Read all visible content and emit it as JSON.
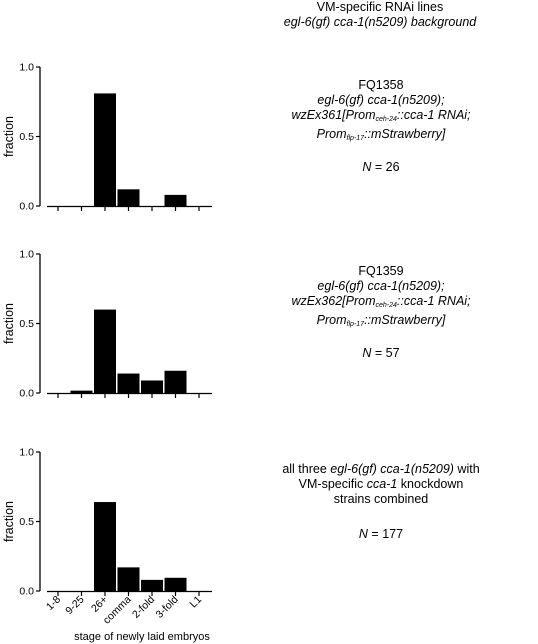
{
  "header": {
    "line1": "VM-specific RNAi lines",
    "line2": "egl-6(gf) cca-1(n5209) background"
  },
  "x_axis_label": "stage of newly laid embryos",
  "panels": [
    {
      "strain": "FQ1358",
      "genotype1": "egl-6(gf) cca-1(n5209);",
      "genotype2_a": "wzEx361[Prom",
      "genotype2_sub": "ceh-24",
      "genotype2_b": "::cca-1 RNAi;",
      "genotype3_a": "Prom",
      "genotype3_sub": "flp-17",
      "genotype3_b": "::mStrawberry]",
      "n_label": "N",
      "n_value": " = 26"
    },
    {
      "strain": "FQ1359",
      "genotype1": "egl-6(gf) cca-1(n5209);",
      "genotype2_a": "wzEx362[Prom",
      "genotype2_sub": "ceh-24",
      "genotype2_b": "::cca-1 RNAi;",
      "genotype3_a": "Prom",
      "genotype3_sub": "flp-17",
      "genotype3_b": "::mStrawberry]",
      "n_label": "N",
      "n_value": " = 57"
    },
    {
      "combined_a": "all three ",
      "combined_it1": "egl-6(gf) cca-1(n5209)",
      "combined_b": " with",
      "combined_c": "VM-specific ",
      "combined_it2": "cca-1",
      "combined_d": " knockdown",
      "combined_e": "strains combined",
      "n_label": "N",
      "n_value": " = 177"
    }
  ],
  "chart_data": [
    {
      "type": "bar",
      "categories": [
        "1-8",
        "9-25",
        "26+",
        "comma",
        "2-fold",
        "3-fold",
        "L1"
      ],
      "values": [
        0,
        0,
        0.81,
        0.12,
        0,
        0.08,
        0
      ],
      "ylabel": "fraction",
      "ylim": [
        0,
        1.0
      ],
      "yticks": [
        "0.0",
        "0.5",
        "1.0"
      ],
      "show_xtick_labels": false
    },
    {
      "type": "bar",
      "categories": [
        "1-8",
        "9-25",
        "26+",
        "comma",
        "2-fold",
        "3-fold",
        "L1"
      ],
      "values": [
        0,
        0.017,
        0.6,
        0.14,
        0.09,
        0.16,
        0
      ],
      "ylabel": "fraction",
      "ylim": [
        0,
        1.0
      ],
      "yticks": [
        "0.0",
        "0.5",
        "1.0"
      ],
      "show_xtick_labels": false
    },
    {
      "type": "bar",
      "categories": [
        "1-8",
        "9-25",
        "26+",
        "comma",
        "2-fold",
        "3-fold",
        "L1"
      ],
      "values": [
        0,
        0,
        0.64,
        0.17,
        0.08,
        0.095,
        0
      ],
      "ylabel": "fraction",
      "ylim": [
        0,
        1.0
      ],
      "yticks": [
        "0.0",
        "0.5",
        "1.0"
      ],
      "show_xtick_labels": true,
      "xlabel": "stage of newly laid embryos"
    }
  ]
}
